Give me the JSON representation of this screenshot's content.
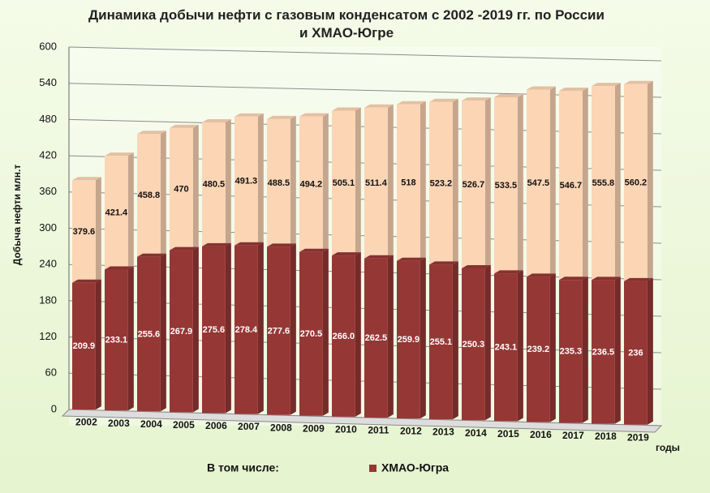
{
  "chart_data": {
    "type": "bar",
    "title": "Динамика добычи нефти с газовым конденсатом с 2002 -2019 гг. по России и ХМАО-Югре",
    "ylabel": "Добыча нефти млн.т",
    "xlabel": "годы",
    "legend_title": "В том числе:",
    "categories": [
      "2002",
      "2003",
      "2004",
      "2005",
      "2006",
      "2007",
      "2008",
      "2009",
      "2010",
      "2011",
      "2012",
      "2013",
      "2014",
      "2015",
      "2016",
      "2017",
      "2018",
      "2019"
    ],
    "series": [
      {
        "color": "#fcd5b5",
        "values": [
          379.6,
          421.4,
          458.8,
          470,
          480.5,
          491.3,
          488.5,
          494.2,
          505.1,
          511.4,
          518,
          523.2,
          526.7,
          533.5,
          547.5,
          546.7,
          555.8,
          560.2
        ]
      },
      {
        "name": "ХМАО-Югра",
        "color": "#953735",
        "values": [
          209.9,
          233.1,
          255.6,
          267.9,
          275.6,
          278.4,
          277.6,
          270.5,
          266,
          262.5,
          259.9,
          255.1,
          250.3,
          243.1,
          239.2,
          235.3,
          236.5,
          236
        ],
        "value_labels": [
          "209.9",
          "233.1",
          "255.6",
          "267.9",
          "275.6",
          "278.4",
          "277.6",
          "270.5",
          "266.0",
          "262.5",
          "259.9",
          "255.1",
          "250.3",
          "243.1",
          "239.2",
          "235.3",
          "236.5",
          "236"
        ]
      }
    ],
    "ylim": [
      0,
      600
    ],
    "yticks": [
      0,
      60,
      120,
      180,
      240,
      300,
      360,
      420,
      480,
      540,
      600
    ],
    "grid": true
  }
}
